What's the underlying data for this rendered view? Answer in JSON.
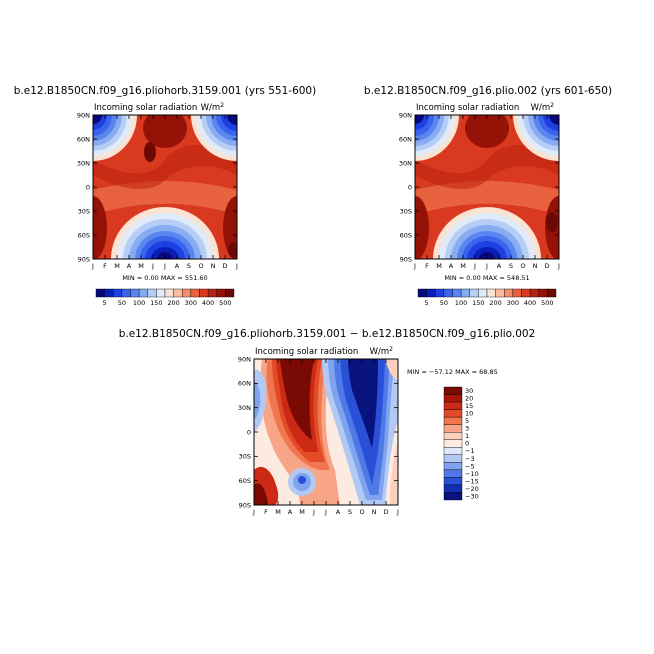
{
  "chart_data": [
    {
      "type": "heatmap",
      "title": "b.e12.B1850CN.f09_g16.pliohorb.3159.001 (yrs 551-600)",
      "subtitle_left": "Incoming solar radiation",
      "subtitle_right": "W/m",
      "units_sup": "2",
      "x_ticks": [
        "J",
        "F",
        "M",
        "A",
        "M",
        "J",
        "J",
        "A",
        "S",
        "O",
        "N",
        "D",
        "J"
      ],
      "y_ticks": [
        "90N",
        "60N",
        "30N",
        "0",
        "30S",
        "60S",
        "90S"
      ],
      "stats": "MIN =   0.00 MAX = 551.60",
      "min": 0.0,
      "max": 551.6,
      "colorbar_labels": [
        "5",
        "50",
        "100",
        "150",
        "200",
        "300",
        "400",
        "500"
      ],
      "colorbar_levels": [
        5,
        25,
        50,
        75,
        100,
        125,
        150,
        175,
        200,
        250,
        300,
        350,
        400,
        450,
        500
      ]
    },
    {
      "type": "heatmap",
      "title": "b.e12.B1850CN.f09_g16.plio.002 (yrs 601-650)",
      "subtitle_left": "Incoming solar radiation",
      "subtitle_right": "W/m",
      "units_sup": "2",
      "x_ticks": [
        "J",
        "F",
        "M",
        "A",
        "M",
        "J",
        "J",
        "A",
        "S",
        "O",
        "N",
        "D",
        "J"
      ],
      "y_ticks": [
        "90N",
        "60N",
        "30N",
        "0",
        "30S",
        "60S",
        "90S"
      ],
      "stats": "MIN =   0.00 MAX = 548.51",
      "min": 0.0,
      "max": 548.51,
      "colorbar_labels": [
        "5",
        "50",
        "100",
        "150",
        "200",
        "300",
        "400",
        "500"
      ],
      "colorbar_levels": [
        5,
        25,
        50,
        75,
        100,
        125,
        150,
        175,
        200,
        250,
        300,
        350,
        400,
        450,
        500
      ]
    },
    {
      "type": "heatmap",
      "title": "b.e12.B1850CN.f09_g16.pliohorb.3159.001 − b.e12.B1850CN.f09_g16.plio.002",
      "subtitle_left": "Incoming solar radiation",
      "subtitle_right": "W/m",
      "units_sup": "2",
      "x_ticks": [
        "J",
        "F",
        "M",
        "A",
        "M",
        "J",
        "J",
        "A",
        "S",
        "O",
        "N",
        "D",
        "J"
      ],
      "y_ticks": [
        "90N",
        "60N",
        "30N",
        "0",
        "30S",
        "60S",
        "90S"
      ],
      "stats": "MIN = −57.12 MAX =   68.85",
      "min": -57.12,
      "max": 68.85,
      "colorbar_labels": [
        "30",
        "20",
        "15",
        "10",
        "5",
        "3",
        "1",
        "0",
        "−1",
        "−3",
        "−5",
        "−10",
        "−15",
        "−20",
        "−30"
      ],
      "colorbar_levels": [
        30,
        20,
        15,
        10,
        5,
        3,
        1,
        0,
        -1,
        -3,
        -5,
        -10,
        -15,
        -20,
        -30
      ]
    }
  ],
  "palettes": {
    "seq": [
      "#08097e",
      "#0a1fb8",
      "#1d40e0",
      "#3a64ee",
      "#5b86f0",
      "#88acf2",
      "#b6cef6",
      "#e0ebfa",
      "#fbe3d4",
      "#f7bba0",
      "#f28f6c",
      "#e8623f",
      "#d8391f",
      "#bb200f",
      "#951207",
      "#6c0903"
    ],
    "div": [
      "#7a0a04",
      "#a8150a",
      "#cc2a14",
      "#e34a26",
      "#f07650",
      "#f7a487",
      "#fbd0bc",
      "#fdebe2",
      "#dfe8fa",
      "#b2c9f4",
      "#7fa3ee",
      "#4f79e6",
      "#2a50d8",
      "#1330b4",
      "#08137e"
    ]
  }
}
